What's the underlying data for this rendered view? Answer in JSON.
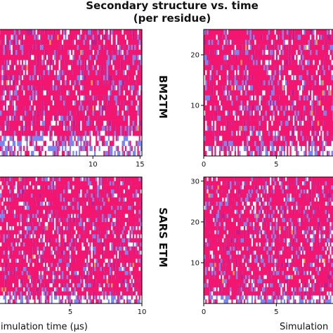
{
  "title_line1": "Secondary structure vs. time",
  "title_line2": "(per residue)",
  "row_labels": [
    "BM2TM",
    "SARS ETM"
  ],
  "xlabel_left": "imulation time (μs)",
  "xlabel_right": "Simulation",
  "colors": {
    "helix": "#f21670",
    "helix_alt": "#c41d8a",
    "three_ten": "#7a86f0",
    "coil": "#ffffff",
    "turn": "#e8a43a"
  },
  "chart_data": [
    {
      "type": "heatmap",
      "panel": "top-left",
      "x_ticks": [
        "10",
        "15"
      ],
      "xlim": [
        0,
        15.2
      ],
      "y_ticks": [],
      "ylim": [
        0,
        25
      ],
      "helix_rows": [
        4,
        24
      ],
      "dominant_state": "helix"
    },
    {
      "type": "heatmap",
      "panel": "top-right",
      "x_ticks": [
        "0",
        "5"
      ],
      "xlim": [
        0,
        9
      ],
      "y_ticks": [
        "10",
        "20"
      ],
      "ylim": [
        0,
        25
      ],
      "helix_rows": [
        2,
        24
      ],
      "dominant_state": "helix"
    },
    {
      "type": "heatmap",
      "panel": "bottom-left",
      "x_ticks": [
        "5",
        "10"
      ],
      "xlim": [
        0,
        10
      ],
      "y_ticks": [],
      "ylim": [
        0,
        31
      ],
      "helix_rows": [
        2,
        30
      ],
      "dominant_state": "helix"
    },
    {
      "type": "heatmap",
      "panel": "bottom-right",
      "x_ticks": [
        "0",
        "5"
      ],
      "xlim": [
        0,
        9
      ],
      "y_ticks": [
        "10",
        "20",
        "30"
      ],
      "ylim": [
        0,
        31
      ],
      "helix_rows": [
        2,
        30
      ],
      "dominant_state": "helix"
    }
  ]
}
